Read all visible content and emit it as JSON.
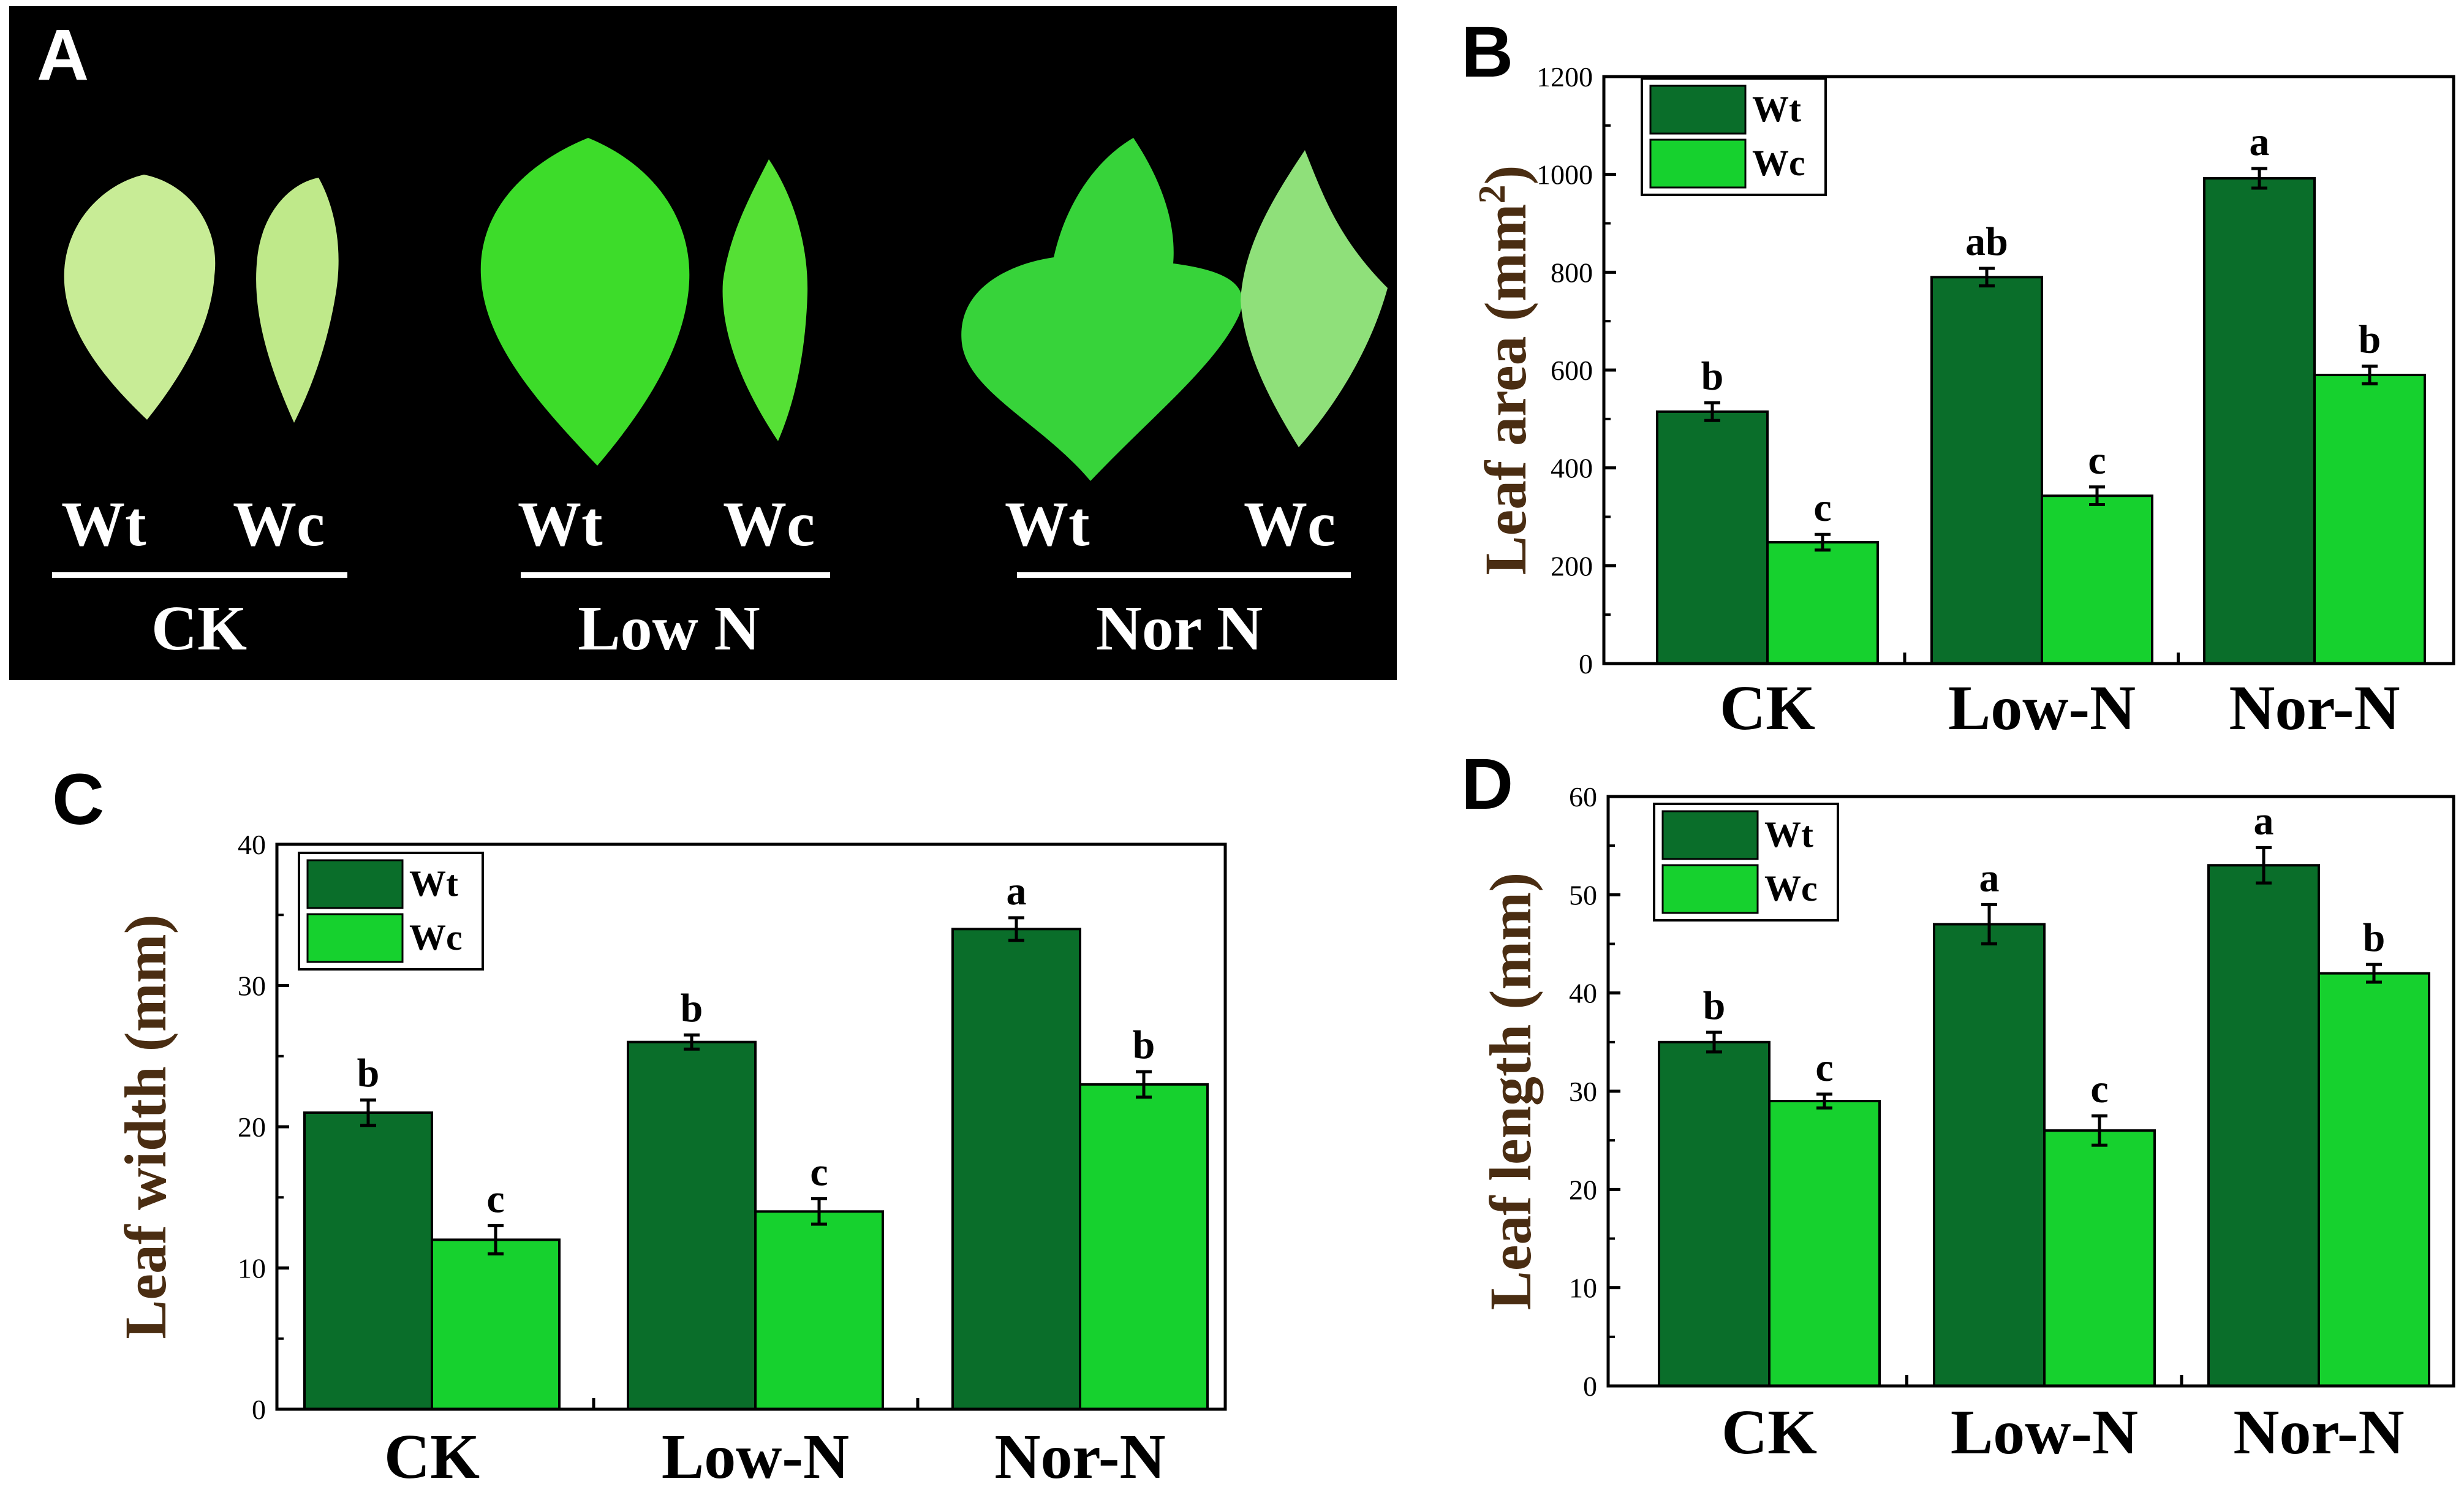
{
  "colors": {
    "wt": "#0a6e2a",
    "wc": "#16d12e",
    "photo_bg": "#000000"
  },
  "panel_a": {
    "label": "A",
    "groups": [
      {
        "genotypes": [
          "Wt",
          "Wc"
        ],
        "treatment": "CK"
      },
      {
        "genotypes": [
          "Wt",
          "Wc"
        ],
        "treatment": "Low N"
      },
      {
        "genotypes": [
          "Wt",
          "Wc"
        ],
        "treatment": "Nor N"
      }
    ]
  },
  "chart_data": [
    {
      "panel": "B",
      "type": "bar",
      "ylabel": "Leaf area (mm",
      "ylabel_sup": "2",
      "ylabel_close": ")",
      "categories": [
        "CK",
        "Low-N",
        "Nor-N"
      ],
      "ylim": [
        0,
        1200
      ],
      "yticks": [
        "0",
        "200",
        "400",
        "600",
        "800",
        "1000",
        "1200"
      ],
      "series": [
        {
          "name": "Wt",
          "values": [
            515,
            790,
            992
          ],
          "errors": [
            18,
            18,
            20
          ],
          "letters": [
            "b",
            "ab",
            "a"
          ]
        },
        {
          "name": "Wc",
          "values": [
            248,
            343,
            590
          ],
          "errors": [
            16,
            18,
            18
          ],
          "letters": [
            "c",
            "c",
            "b"
          ]
        }
      ],
      "legend": "top-left"
    },
    {
      "panel": "C",
      "type": "bar",
      "ylabel": "Leaf width (mm)",
      "categories": [
        "CK",
        "Low-N",
        "Nor-N"
      ],
      "ylim": [
        0,
        40
      ],
      "yticks": [
        "0",
        "10",
        "20",
        "30",
        "40"
      ],
      "series": [
        {
          "name": "Wt",
          "values": [
            21,
            26,
            34
          ],
          "errors": [
            0.9,
            0.5,
            0.8
          ],
          "letters": [
            "b",
            "b",
            "a"
          ]
        },
        {
          "name": "Wc",
          "values": [
            12,
            14,
            23
          ],
          "errors": [
            1.0,
            0.9,
            0.9
          ],
          "letters": [
            "c",
            "c",
            "b"
          ]
        }
      ],
      "legend": "top-left"
    },
    {
      "panel": "D",
      "type": "bar",
      "ylabel": "Leaf length (mm)",
      "categories": [
        "CK",
        "Low-N",
        "Nor-N"
      ],
      "ylim": [
        0,
        60
      ],
      "yticks": [
        "0",
        "10",
        "20",
        "30",
        "40",
        "50",
        "60"
      ],
      "series": [
        {
          "name": "Wt",
          "values": [
            35,
            47,
            53
          ],
          "errors": [
            1.0,
            2.0,
            1.8
          ],
          "letters": [
            "b",
            "a",
            "a"
          ]
        },
        {
          "name": "Wc",
          "values": [
            29,
            26,
            42
          ],
          "errors": [
            0.7,
            1.5,
            0.9
          ],
          "letters": [
            "c",
            "c",
            "b"
          ]
        }
      ],
      "legend": "top-left"
    }
  ]
}
